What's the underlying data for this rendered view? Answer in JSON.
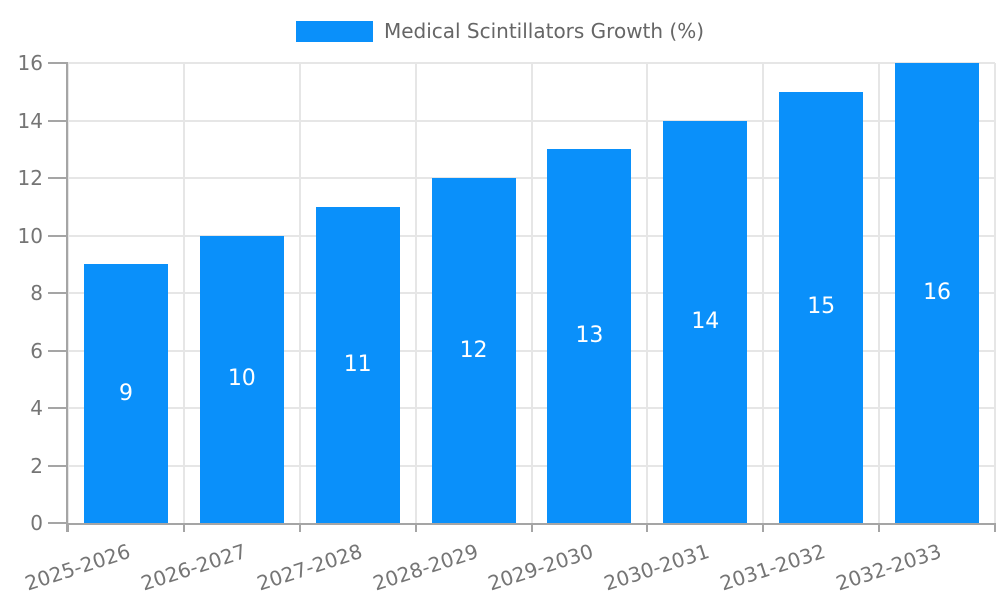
{
  "chart_data": {
    "type": "bar",
    "title": "Medical Scintillators Growth (%)",
    "categories": [
      "2025-2026",
      "2026-2027",
      "2027-2028",
      "2028-2029",
      "2029-2030",
      "2030-2031",
      "2031-2032",
      "2032-2033"
    ],
    "values": [
      9,
      10,
      11,
      12,
      13,
      14,
      15,
      16
    ],
    "xlabel": "",
    "ylabel": "",
    "ylim": [
      0,
      16
    ],
    "ytick_step": 2,
    "yticks": [
      0,
      2,
      4,
      6,
      8,
      10,
      12,
      14,
      16
    ],
    "grid": true,
    "legend_position": "top-center",
    "x_label_rotation_deg": -18,
    "value_labels": "inside-center",
    "colors": {
      "bar": "#0a90fa",
      "bar_value_label": "#ffffff",
      "grid": "#e6e6e6",
      "axis": "#a5a5a5",
      "tick_label": "#757575",
      "legend_text": "#666666",
      "background": "#ffffff"
    }
  }
}
